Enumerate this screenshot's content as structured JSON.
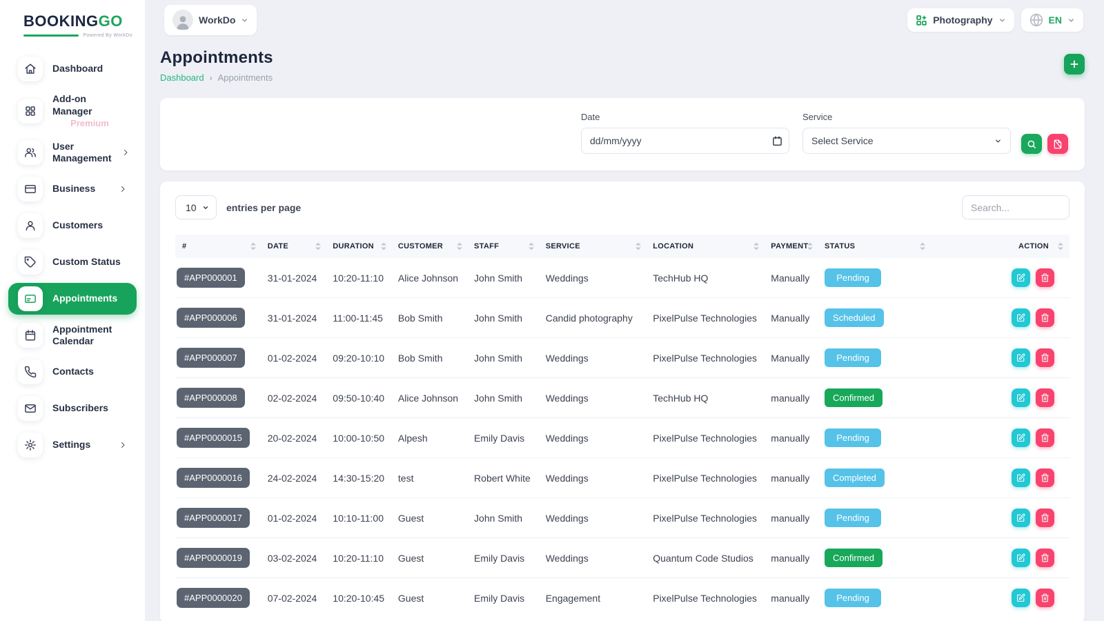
{
  "brand": {
    "name_primary": "BOOKING",
    "name_secondary": "GO",
    "powered_by": "Powered By WorkDo"
  },
  "workspace": {
    "name": "WorkDo"
  },
  "topbar": {
    "module": "Photography",
    "language": "EN"
  },
  "sidebar": {
    "items": [
      {
        "label": "Dashboard",
        "icon": "home-icon",
        "active": false,
        "chevron": false,
        "sub": ""
      },
      {
        "label": "Add-on Manager",
        "icon": "grid-icon",
        "active": false,
        "chevron": false,
        "sub": "Premium"
      },
      {
        "label": "User Management",
        "icon": "users-icon",
        "active": false,
        "chevron": true,
        "sub": ""
      },
      {
        "label": "Business",
        "icon": "credit-card-icon",
        "active": false,
        "chevron": true,
        "sub": ""
      },
      {
        "label": "Customers",
        "icon": "user-icon",
        "active": false,
        "chevron": false,
        "sub": ""
      },
      {
        "label": "Custom Status",
        "icon": "tag-icon",
        "active": false,
        "chevron": false,
        "sub": ""
      },
      {
        "label": "Appointments",
        "icon": "appointment-card-icon",
        "active": true,
        "chevron": false,
        "sub": ""
      },
      {
        "label": "Appointment Calendar",
        "icon": "calendar-icon",
        "active": false,
        "chevron": false,
        "sub": ""
      },
      {
        "label": "Contacts",
        "icon": "phone-icon",
        "active": false,
        "chevron": false,
        "sub": ""
      },
      {
        "label": "Subscribers",
        "icon": "mail-icon",
        "active": false,
        "chevron": false,
        "sub": ""
      },
      {
        "label": "Settings",
        "icon": "gear-icon",
        "active": false,
        "chevron": true,
        "sub": ""
      }
    ]
  },
  "page": {
    "title": "Appointments",
    "breadcrumb_home": "Dashboard",
    "breadcrumb_current": "Appointments"
  },
  "filters": {
    "date_label": "Date",
    "date_placeholder": "dd/mm/yyyy",
    "service_label": "Service",
    "service_value": "Select Service"
  },
  "table": {
    "entries_per_page": "10",
    "entries_label": "entries per page",
    "search_placeholder": "Search...",
    "columns": [
      "#",
      "DATE",
      "DURATION",
      "CUSTOMER",
      "STAFF",
      "SERVICE",
      "LOCATION",
      "PAYMENT",
      "STATUS",
      "ACTION"
    ],
    "rows": [
      {
        "id": "#APP000001",
        "date": "31-01-2024",
        "duration": "10:20-11:10",
        "customer": "Alice Johnson",
        "staff": "John Smith",
        "service": "Weddings",
        "location": "TechHub HQ",
        "payment": "Manually",
        "status": "Pending",
        "status_color": "blue"
      },
      {
        "id": "#APP000006",
        "date": "31-01-2024",
        "duration": "11:00-11:45",
        "customer": "Bob Smith",
        "staff": "John Smith",
        "service": "Candid photography",
        "location": "PixelPulse Technologies",
        "payment": "Manually",
        "status": "Scheduled",
        "status_color": "blue"
      },
      {
        "id": "#APP000007",
        "date": "01-02-2024",
        "duration": "09:20-10:10",
        "customer": "Bob Smith",
        "staff": "John Smith",
        "service": "Weddings",
        "location": "PixelPulse Technologies",
        "payment": "Manually",
        "status": "Pending",
        "status_color": "blue"
      },
      {
        "id": "#APP000008",
        "date": "02-02-2024",
        "duration": "09:50-10:40",
        "customer": "Alice Johnson",
        "staff": "John Smith",
        "service": "Weddings",
        "location": "TechHub HQ",
        "payment": "manually",
        "status": "Confirmed",
        "status_color": "green"
      },
      {
        "id": "#APP0000015",
        "date": "20-02-2024",
        "duration": "10:00-10:50",
        "customer": "Alpesh",
        "staff": "Emily Davis",
        "service": "Weddings",
        "location": "PixelPulse Technologies",
        "payment": "manually",
        "status": "Pending",
        "status_color": "blue"
      },
      {
        "id": "#APP0000016",
        "date": "24-02-2024",
        "duration": "14:30-15:20",
        "customer": "test",
        "staff": "Robert White",
        "service": "Weddings",
        "location": "PixelPulse Technologies",
        "payment": "manually",
        "status": "Completed",
        "status_color": "blue"
      },
      {
        "id": "#APP0000017",
        "date": "01-02-2024",
        "duration": "10:10-11:00",
        "customer": "Guest",
        "staff": "John Smith",
        "service": "Weddings",
        "location": "PixelPulse Technologies",
        "payment": "manually",
        "status": "Pending",
        "status_color": "blue"
      },
      {
        "id": "#APP0000019",
        "date": "03-02-2024",
        "duration": "10:20-11:10",
        "customer": "Guest",
        "staff": "Emily Davis",
        "service": "Weddings",
        "location": "Quantum Code Studios",
        "payment": "manually",
        "status": "Confirmed",
        "status_color": "green"
      },
      {
        "id": "#APP0000020",
        "date": "07-02-2024",
        "duration": "10:20-10:45",
        "customer": "Guest",
        "staff": "Emily Davis",
        "service": "Engagement",
        "location": "PixelPulse Technologies",
        "payment": "manually",
        "status": "Pending",
        "status_color": "blue"
      }
    ]
  },
  "colors": {
    "accent_green": "#17a35b",
    "logo_green": "#1fa55e",
    "pink": "#f7436e",
    "cyan_edit": "#23c8d4",
    "badge_blue": "#56c2e8",
    "badge_green": "#17a85a",
    "id_badge_gray": "#5b6470",
    "premium_pink": "#f0bcd0",
    "page_background": "#eef0f5"
  }
}
